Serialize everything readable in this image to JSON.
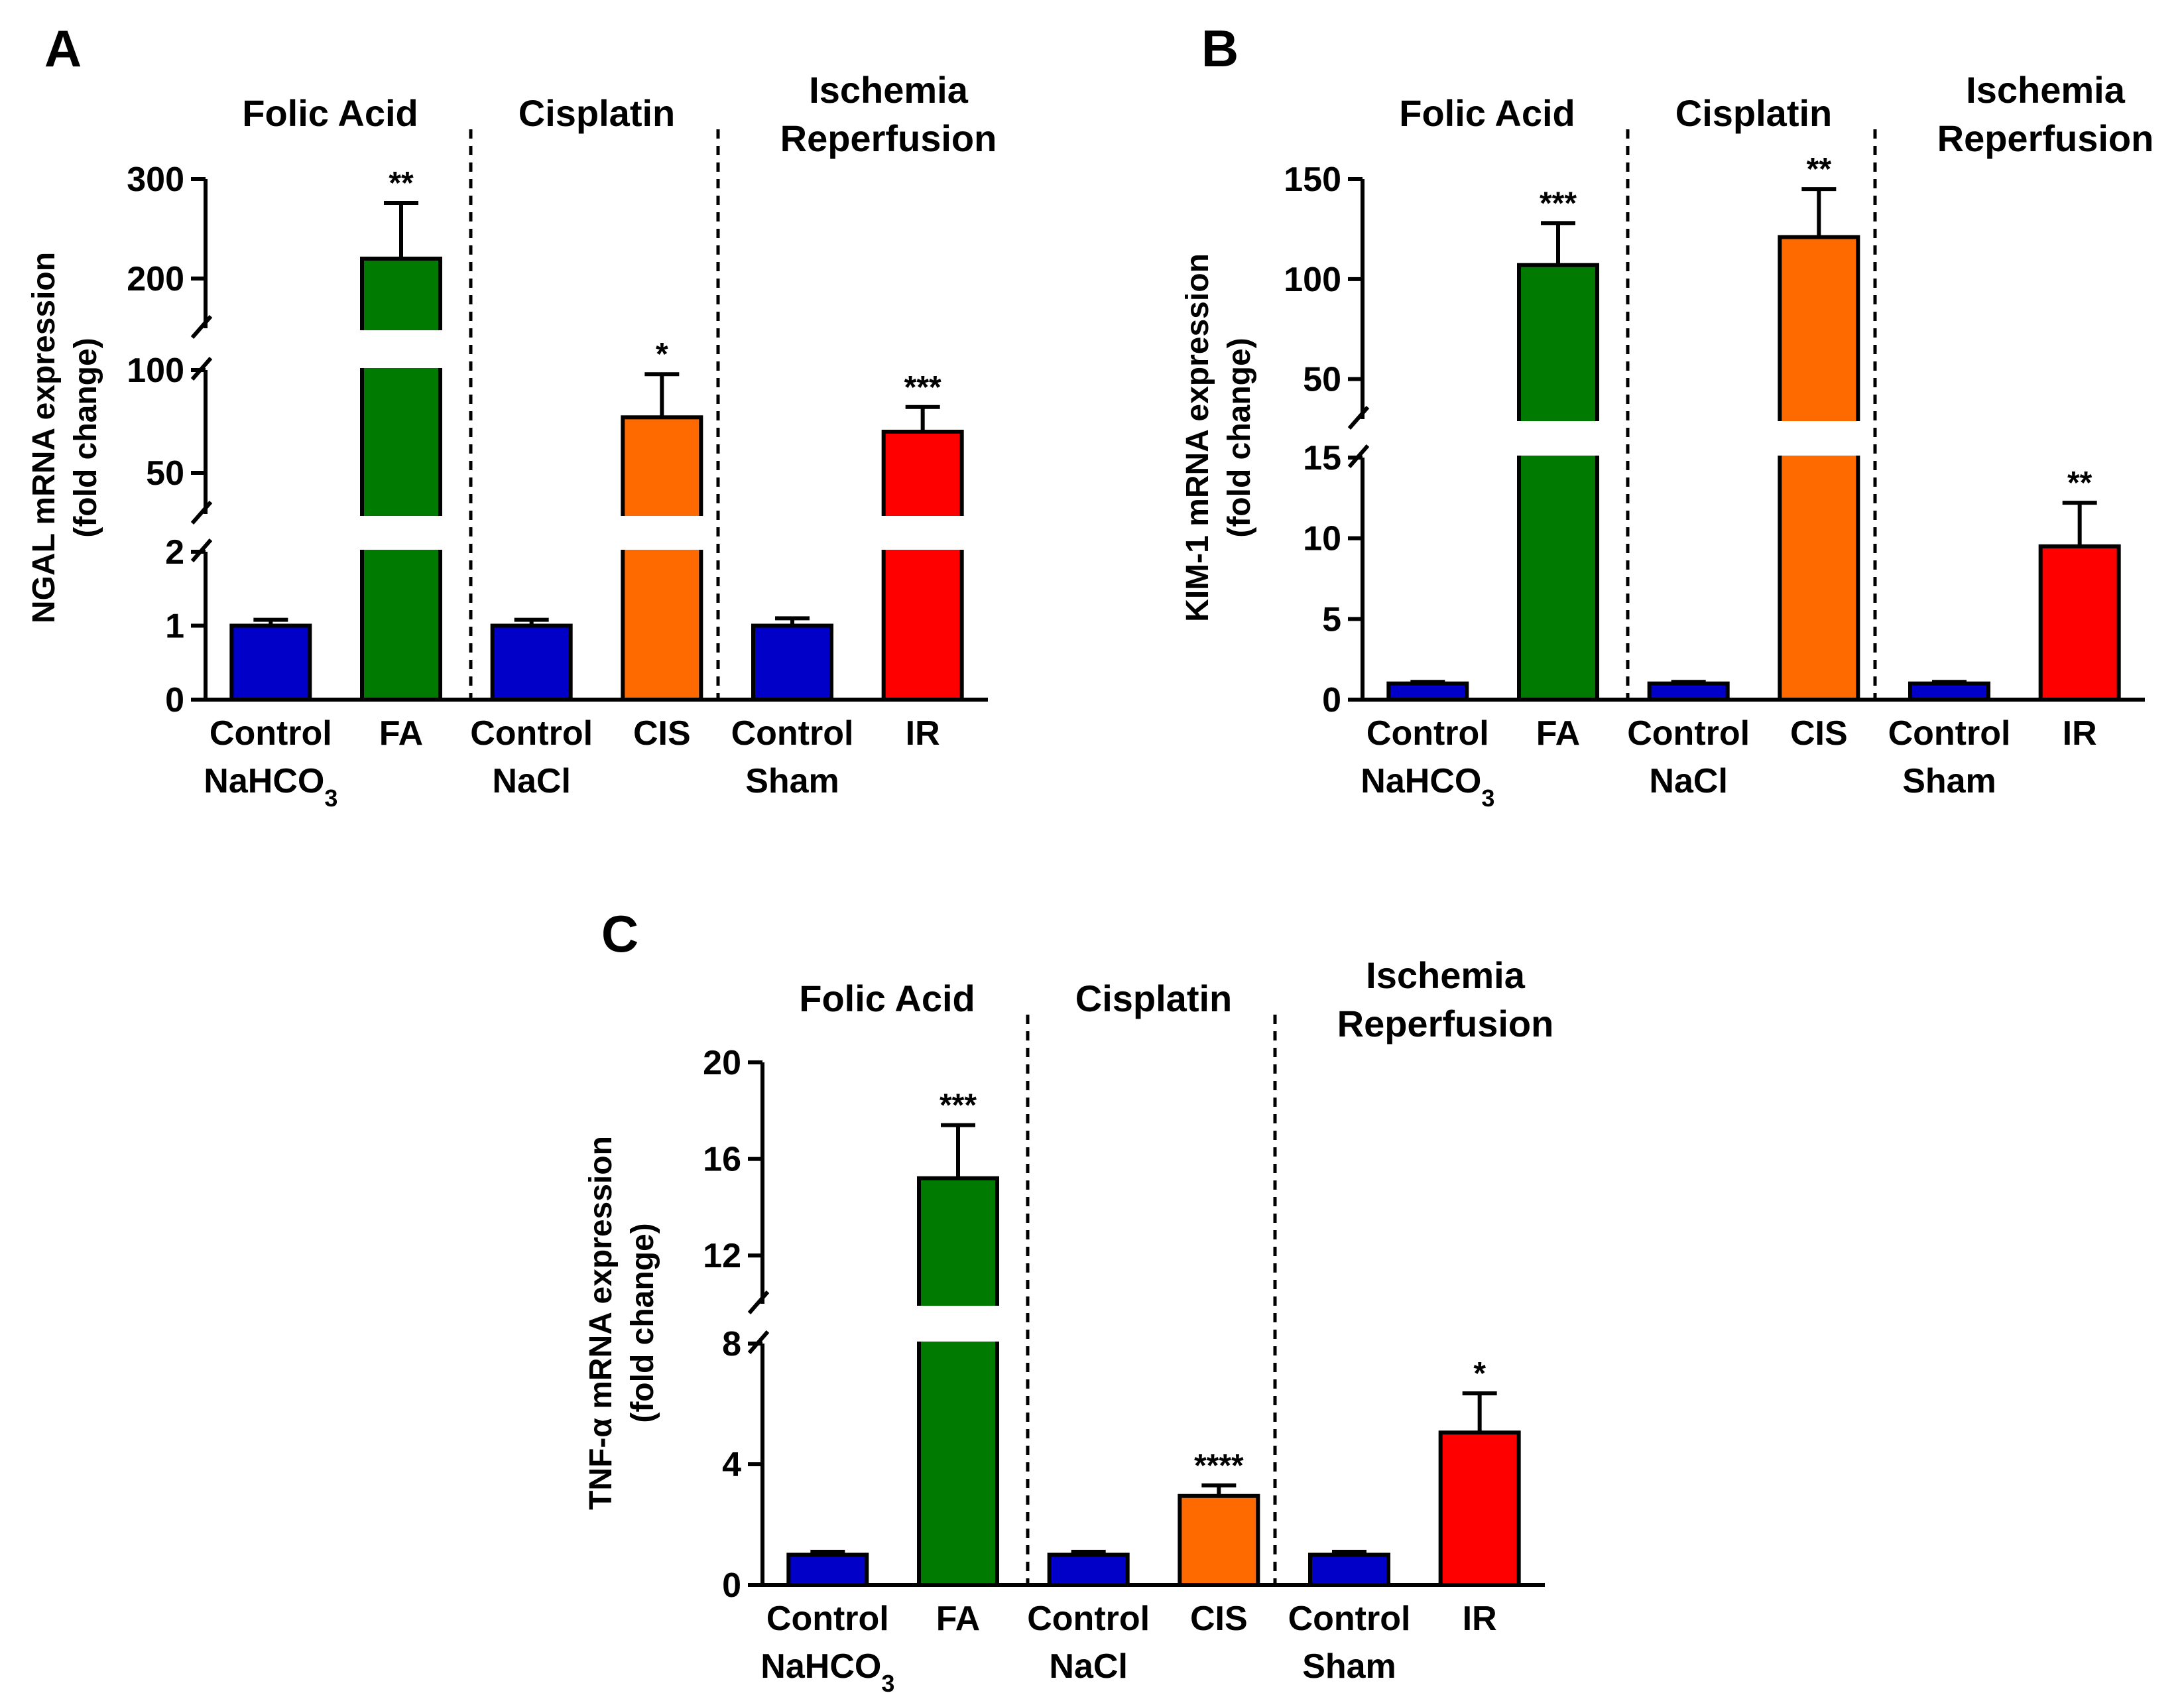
{
  "colors": {
    "control": "#0000c8",
    "fa": "#007a00",
    "cis": "#ff6a00",
    "ir": "#ff0000"
  },
  "chart_data": [
    {
      "panel": "A",
      "type": "bar",
      "ylabel_lines": [
        "NGAL mRNA expression",
        "(fold change)"
      ],
      "groups": [
        "Folic Acid",
        "Cisplatin",
        "Ischemia Reperfusion"
      ],
      "categories": [
        {
          "line1": "Control",
          "line2": "NaHCO",
          "sub": "3"
        },
        {
          "line1": "FA",
          "line2": "",
          "sub": ""
        },
        {
          "line1": "Control",
          "line2": "NaCl",
          "sub": ""
        },
        {
          "line1": "CIS",
          "line2": "",
          "sub": ""
        },
        {
          "line1": "Control",
          "line2": "Sham",
          "sub": ""
        },
        {
          "line1": "IR",
          "line2": "",
          "sub": ""
        }
      ],
      "values": [
        1,
        220,
        1,
        77,
        1,
        70
      ],
      "errors": [
        0.08,
        56,
        0.08,
        21,
        0.1,
        12
      ],
      "significance": [
        "",
        "**",
        "",
        "*",
        "",
        "***"
      ],
      "bar_colors": [
        "control",
        "fa",
        "control",
        "cis",
        "control",
        "ir"
      ],
      "segments": [
        {
          "range": [
            0,
            2
          ],
          "ticks": [
            0,
            1,
            2
          ]
        },
        {
          "range": [
            30,
            100
          ],
          "ticks": [
            50,
            100
          ]
        },
        {
          "range": [
            150,
            300
          ],
          "ticks": [
            200,
            300
          ]
        }
      ]
    },
    {
      "panel": "B",
      "type": "bar",
      "ylabel_lines": [
        "KIM-1 mRNA expression",
        "(fold change)"
      ],
      "groups": [
        "Folic Acid",
        "Cisplatin",
        "Ischemia Reperfusion"
      ],
      "categories": [
        {
          "line1": "Control",
          "line2": "NaHCO",
          "sub": "3"
        },
        {
          "line1": "FA",
          "line2": "",
          "sub": ""
        },
        {
          "line1": "Control",
          "line2": "NaCl",
          "sub": ""
        },
        {
          "line1": "CIS",
          "line2": "",
          "sub": ""
        },
        {
          "line1": "Control",
          "line2": "Sham",
          "sub": ""
        },
        {
          "line1": "IR",
          "line2": "",
          "sub": ""
        }
      ],
      "values": [
        1,
        107,
        1,
        121,
        1,
        9.5
      ],
      "errors": [
        0.1,
        21,
        0.1,
        24,
        0.1,
        2.7
      ],
      "significance": [
        "",
        "***",
        "",
        "**",
        "",
        "**"
      ],
      "bar_colors": [
        "control",
        "fa",
        "control",
        "cis",
        "control",
        "ir"
      ],
      "segments": [
        {
          "range": [
            0,
            15
          ],
          "ticks": [
            0,
            5,
            10,
            15
          ]
        },
        {
          "range": [
            30,
            150
          ],
          "ticks": [
            50,
            100,
            150
          ]
        }
      ]
    },
    {
      "panel": "C",
      "type": "bar",
      "ylabel_lines": [
        "TNF-α mRNA expression",
        "(fold change)"
      ],
      "groups": [
        "Folic Acid",
        "Cisplatin",
        "Ischemia Reperfusion"
      ],
      "categories": [
        {
          "line1": "Control",
          "line2": "NaHCO",
          "sub": "3"
        },
        {
          "line1": "FA",
          "line2": "",
          "sub": ""
        },
        {
          "line1": "Control",
          "line2": "NaCl",
          "sub": ""
        },
        {
          "line1": "CIS",
          "line2": "",
          "sub": ""
        },
        {
          "line1": "Control",
          "line2": "Sham",
          "sub": ""
        },
        {
          "line1": "IR",
          "line2": "",
          "sub": ""
        }
      ],
      "values": [
        1,
        15.2,
        1,
        2.95,
        1,
        5.05
      ],
      "errors": [
        0.1,
        2.2,
        0.1,
        0.35,
        0.1,
        1.3
      ],
      "significance": [
        "",
        "***",
        "",
        "****",
        "",
        "*"
      ],
      "bar_colors": [
        "control",
        "fa",
        "control",
        "cis",
        "control",
        "ir"
      ],
      "segments": [
        {
          "range": [
            0,
            8
          ],
          "ticks": [
            0,
            4,
            8
          ]
        },
        {
          "range": [
            10,
            20
          ],
          "ticks": [
            12,
            16,
            20
          ]
        }
      ]
    }
  ]
}
